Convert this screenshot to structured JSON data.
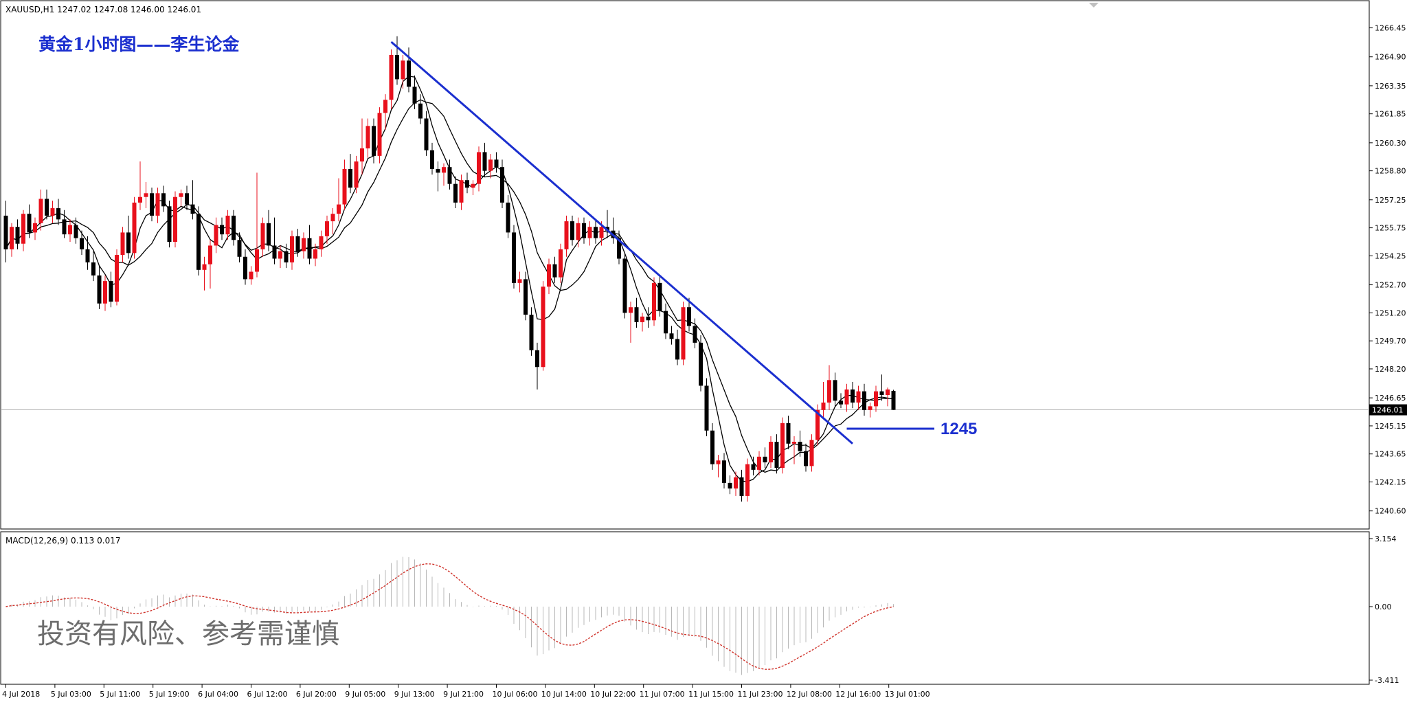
{
  "header": {
    "symbol_info": "XAUUSD,H1  1247.02 1247.08 1246.00 1246.01",
    "title": "黄金1小时图——李生论金",
    "disclaimer": "投资有风险、参考需谨慎"
  },
  "colors": {
    "bull": "#e8101c",
    "bear": "#000000",
    "trendline": "#1b2fcf",
    "ma": "#000000",
    "macd_hist": "#b8b8b8",
    "macd_signal": "#d0342c",
    "price_line": "#b0b0b0"
  },
  "chart_data": [
    {
      "type": "candlestick",
      "symbol": "XAUUSD",
      "timeframe": "H1",
      "ohlc_current": {
        "open": 1247.02,
        "high": 1247.08,
        "low": 1246.0,
        "close": 1246.01
      },
      "current_price_label": "1246.01",
      "ylim": [
        1240.0,
        1267.5
      ],
      "y_ticks": [
        "1266.45",
        "1264.90",
        "1263.35",
        "1261.85",
        "1260.30",
        "1258.80",
        "1257.25",
        "1255.75",
        "1254.25",
        "1252.70",
        "1251.20",
        "1249.70",
        "1248.20",
        "1246.65",
        "1245.15",
        "1243.65",
        "1242.15",
        "1240.60"
      ],
      "x_tick_labels": [
        "4 Jul 2018",
        "5 Jul 03:00",
        "5 Jul 11:00",
        "5 Jul 19:00",
        "6 Jul 04:00",
        "6 Jul 12:00",
        "6 Jul 20:00",
        "9 Jul 05:00",
        "9 Jul 13:00",
        "9 Jul 21:00",
        "10 Jul 06:00",
        "10 Jul 14:00",
        "10 Jul 22:00",
        "11 Jul 07:00",
        "11 Jul 15:00",
        "11 Jul 23:00",
        "12 Jul 08:00",
        "12 Jul 16:00",
        "13 Jul 01:00"
      ],
      "candles": [
        [
          1256.4,
          1257.2,
          1253.9,
          1254.6
        ],
        [
          1254.6,
          1256.0,
          1254.2,
          1255.8
        ],
        [
          1255.8,
          1256.2,
          1254.6,
          1254.9
        ],
        [
          1254.9,
          1256.7,
          1254.5,
          1256.5
        ],
        [
          1256.5,
          1257.0,
          1255.2,
          1255.5
        ],
        [
          1255.5,
          1256.3,
          1255.1,
          1256.0
        ],
        [
          1256.0,
          1257.8,
          1255.6,
          1257.3
        ],
        [
          1257.3,
          1257.8,
          1256.2,
          1256.4
        ],
        [
          1256.4,
          1257.2,
          1256.0,
          1256.8
        ],
        [
          1256.8,
          1257.3,
          1255.9,
          1256.2
        ],
        [
          1256.2,
          1256.7,
          1255.2,
          1255.4
        ],
        [
          1255.4,
          1256.2,
          1255.0,
          1255.9
        ],
        [
          1255.9,
          1256.3,
          1254.9,
          1255.2
        ],
        [
          1255.2,
          1255.6,
          1254.3,
          1254.6
        ],
        [
          1254.6,
          1255.3,
          1253.5,
          1253.9
        ],
        [
          1253.9,
          1254.5,
          1252.9,
          1253.2
        ],
        [
          1253.2,
          1253.7,
          1251.4,
          1251.7
        ],
        [
          1251.7,
          1253.2,
          1251.3,
          1252.9
        ],
        [
          1252.9,
          1253.4,
          1251.5,
          1251.8
        ],
        [
          1251.8,
          1254.6,
          1251.6,
          1254.3
        ],
        [
          1254.3,
          1255.8,
          1253.9,
          1255.5
        ],
        [
          1255.5,
          1256.4,
          1254.1,
          1254.4
        ],
        [
          1254.4,
          1257.4,
          1254.1,
          1257.1
        ],
        [
          1257.1,
          1259.3,
          1256.7,
          1257.4
        ],
        [
          1257.4,
          1258.2,
          1256.8,
          1257.6
        ],
        [
          1257.6,
          1257.9,
          1256.1,
          1256.4
        ],
        [
          1256.4,
          1257.9,
          1256.0,
          1257.6
        ],
        [
          1257.6,
          1258.0,
          1256.6,
          1256.9
        ],
        [
          1256.9,
          1257.2,
          1254.7,
          1255.0
        ],
        [
          1255.0,
          1257.7,
          1254.7,
          1257.4
        ],
        [
          1257.4,
          1257.8,
          1256.9,
          1257.6
        ],
        [
          1257.6,
          1258.0,
          1256.7,
          1257.0
        ],
        [
          1257.0,
          1258.3,
          1256.2,
          1256.5
        ],
        [
          1256.5,
          1256.9,
          1253.2,
          1253.5
        ],
        [
          1253.5,
          1254.2,
          1252.4,
          1253.8
        ],
        [
          1253.8,
          1255.1,
          1252.5,
          1254.8
        ],
        [
          1254.8,
          1256.3,
          1254.4,
          1255.9
        ],
        [
          1255.9,
          1256.3,
          1255.1,
          1255.4
        ],
        [
          1255.4,
          1256.7,
          1255.1,
          1256.4
        ],
        [
          1256.4,
          1256.7,
          1254.8,
          1255.1
        ],
        [
          1255.1,
          1255.5,
          1253.9,
          1254.2
        ],
        [
          1254.2,
          1254.6,
          1252.7,
          1253.0
        ],
        [
          1253.0,
          1253.7,
          1252.7,
          1253.4
        ],
        [
          1253.4,
          1258.7,
          1253.1,
          1254.6
        ],
        [
          1254.6,
          1256.3,
          1254.2,
          1256.0
        ],
        [
          1256.0,
          1256.7,
          1254.5,
          1254.8
        ],
        [
          1254.8,
          1256.3,
          1253.8,
          1254.1
        ],
        [
          1254.1,
          1254.8,
          1253.6,
          1254.5
        ],
        [
          1254.5,
          1254.9,
          1253.6,
          1253.9
        ],
        [
          1253.9,
          1255.6,
          1253.5,
          1255.3
        ],
        [
          1255.3,
          1255.7,
          1254.2,
          1254.5
        ],
        [
          1254.5,
          1255.5,
          1254.1,
          1255.2
        ],
        [
          1255.2,
          1255.9,
          1253.8,
          1254.1
        ],
        [
          1254.1,
          1254.9,
          1253.7,
          1254.6
        ],
        [
          1254.6,
          1255.6,
          1254.2,
          1255.3
        ],
        [
          1255.3,
          1256.4,
          1254.9,
          1256.1
        ],
        [
          1256.1,
          1256.8,
          1255.4,
          1256.5
        ],
        [
          1256.5,
          1258.4,
          1256.1,
          1257.0
        ],
        [
          1257.0,
          1259.4,
          1256.7,
          1258.9
        ],
        [
          1258.9,
          1259.7,
          1257.6,
          1257.9
        ],
        [
          1257.9,
          1259.6,
          1257.6,
          1259.3
        ],
        [
          1259.3,
          1261.6,
          1258.6,
          1260.0
        ],
        [
          1260.0,
          1261.6,
          1259.5,
          1261.2
        ],
        [
          1261.2,
          1261.6,
          1259.2,
          1259.6
        ],
        [
          1259.6,
          1262.2,
          1259.2,
          1261.9
        ],
        [
          1261.9,
          1262.9,
          1261.0,
          1262.6
        ],
        [
          1262.6,
          1265.3,
          1262.1,
          1265.0
        ],
        [
          1265.0,
          1266.0,
          1263.4,
          1263.7
        ],
        [
          1263.7,
          1265.0,
          1263.2,
          1264.7
        ],
        [
          1264.7,
          1265.4,
          1263.0,
          1263.3
        ],
        [
          1263.3,
          1263.9,
          1262.1,
          1262.4
        ],
        [
          1262.4,
          1262.9,
          1261.3,
          1261.6
        ],
        [
          1261.6,
          1262.0,
          1259.6,
          1259.9
        ],
        [
          1259.9,
          1260.3,
          1258.6,
          1258.9
        ],
        [
          1258.9,
          1259.3,
          1257.7,
          1258.7
        ],
        [
          1258.7,
          1259.2,
          1258.0,
          1259.0
        ],
        [
          1259.0,
          1259.4,
          1257.8,
          1258.1
        ],
        [
          1258.1,
          1258.5,
          1256.8,
          1257.1
        ],
        [
          1257.1,
          1258.6,
          1256.7,
          1258.3
        ],
        [
          1258.3,
          1258.7,
          1257.6,
          1257.9
        ],
        [
          1257.9,
          1258.3,
          1257.5,
          1258.1
        ],
        [
          1258.1,
          1260.1,
          1257.7,
          1259.8
        ],
        [
          1259.8,
          1260.3,
          1258.5,
          1258.8
        ],
        [
          1258.8,
          1259.7,
          1258.4,
          1259.4
        ],
        [
          1259.4,
          1259.8,
          1258.7,
          1259.0
        ],
        [
          1259.0,
          1259.4,
          1256.8,
          1257.1
        ],
        [
          1257.1,
          1257.5,
          1255.2,
          1255.5
        ],
        [
          1255.5,
          1255.9,
          1252.5,
          1252.8
        ],
        [
          1252.8,
          1253.4,
          1252.3,
          1253.0
        ],
        [
          1253.0,
          1253.4,
          1250.8,
          1251.1
        ],
        [
          1251.1,
          1251.5,
          1248.9,
          1249.2
        ],
        [
          1249.2,
          1249.6,
          1247.1,
          1248.3
        ],
        [
          1248.3,
          1252.9,
          1248.1,
          1252.6
        ],
        [
          1252.6,
          1254.1,
          1252.2,
          1253.8
        ],
        [
          1253.8,
          1254.2,
          1252.8,
          1253.1
        ],
        [
          1253.1,
          1254.9,
          1252.8,
          1254.6
        ],
        [
          1254.6,
          1256.4,
          1254.2,
          1256.1
        ],
        [
          1256.1,
          1256.4,
          1254.8,
          1255.1
        ],
        [
          1255.1,
          1256.3,
          1254.7,
          1256.0
        ],
        [
          1256.0,
          1256.3,
          1254.9,
          1255.2
        ],
        [
          1255.2,
          1256.1,
          1254.8,
          1255.8
        ],
        [
          1255.8,
          1256.2,
          1254.9,
          1255.2
        ],
        [
          1255.2,
          1256.1,
          1254.8,
          1255.8
        ],
        [
          1255.8,
          1256.7,
          1255.2,
          1255.6
        ],
        [
          1255.6,
          1256.3,
          1254.9,
          1255.2
        ],
        [
          1255.2,
          1255.6,
          1253.8,
          1254.1
        ],
        [
          1254.1,
          1254.4,
          1250.9,
          1251.2
        ],
        [
          1251.2,
          1251.8,
          1249.6,
          1251.5
        ],
        [
          1251.5,
          1252.0,
          1250.4,
          1250.7
        ],
        [
          1250.7,
          1251.2,
          1250.2,
          1251.0
        ],
        [
          1251.0,
          1251.5,
          1250.4,
          1250.8
        ],
        [
          1250.8,
          1253.1,
          1250.5,
          1252.8
        ],
        [
          1252.8,
          1253.2,
          1251.0,
          1251.3
        ],
        [
          1251.3,
          1251.7,
          1249.8,
          1250.1
        ],
        [
          1250.1,
          1250.5,
          1249.5,
          1249.8
        ],
        [
          1249.8,
          1250.3,
          1248.4,
          1248.7
        ],
        [
          1248.7,
          1251.8,
          1248.4,
          1251.5
        ],
        [
          1251.5,
          1252.0,
          1250.2,
          1250.5
        ],
        [
          1250.5,
          1250.9,
          1249.3,
          1249.6
        ],
        [
          1249.6,
          1250.0,
          1247.0,
          1247.3
        ],
        [
          1247.3,
          1247.7,
          1244.6,
          1244.9
        ],
        [
          1244.9,
          1245.3,
          1242.8,
          1243.1
        ],
        [
          1243.1,
          1243.6,
          1242.4,
          1243.3
        ],
        [
          1243.3,
          1243.7,
          1241.8,
          1242.1
        ],
        [
          1242.1,
          1242.5,
          1241.5,
          1241.8
        ],
        [
          1241.8,
          1242.7,
          1241.4,
          1242.4
        ],
        [
          1242.4,
          1242.8,
          1241.1,
          1241.4
        ],
        [
          1241.4,
          1243.4,
          1241.1,
          1243.1
        ],
        [
          1243.1,
          1243.5,
          1242.5,
          1242.8
        ],
        [
          1242.8,
          1243.8,
          1242.5,
          1243.5
        ],
        [
          1243.5,
          1244.0,
          1242.9,
          1243.2
        ],
        [
          1243.2,
          1244.6,
          1242.9,
          1244.3
        ],
        [
          1244.3,
          1244.7,
          1242.6,
          1242.9
        ],
        [
          1242.9,
          1245.6,
          1242.6,
          1245.3
        ],
        [
          1245.3,
          1245.7,
          1243.9,
          1244.2
        ],
        [
          1244.2,
          1244.6,
          1243.1,
          1244.3
        ],
        [
          1244.3,
          1244.9,
          1243.5,
          1243.8
        ],
        [
          1243.8,
          1244.2,
          1242.7,
          1243.0
        ],
        [
          1243.0,
          1244.7,
          1242.7,
          1244.4
        ],
        [
          1244.4,
          1246.3,
          1244.1,
          1246.0
        ],
        [
          1246.0,
          1247.5,
          1245.5,
          1246.4
        ],
        [
          1246.4,
          1248.4,
          1246.0,
          1247.6
        ],
        [
          1247.6,
          1248.0,
          1246.2,
          1246.5
        ],
        [
          1246.5,
          1246.9,
          1246.1,
          1246.3
        ],
        [
          1246.3,
          1247.4,
          1245.9,
          1247.1
        ],
        [
          1247.1,
          1247.5,
          1246.1,
          1246.4
        ],
        [
          1246.4,
          1247.3,
          1246.0,
          1247.0
        ],
        [
          1247.0,
          1247.4,
          1245.7,
          1246.0
        ],
        [
          1246.0,
          1246.4,
          1245.6,
          1246.2
        ],
        [
          1246.2,
          1247.3,
          1245.9,
          1247.0
        ],
        [
          1247.0,
          1247.9,
          1246.5,
          1246.8
        ],
        [
          1246.8,
          1247.2,
          1246.2,
          1247.1
        ],
        [
          1247.02,
          1247.08,
          1246.0,
          1246.01
        ]
      ],
      "trendline": {
        "start": {
          "index": 66,
          "price": 1265.7
        },
        "end": {
          "index": 145,
          "price": 1244.2
        }
      },
      "support_level": {
        "price": 1245,
        "label": "1245",
        "from_index": 144,
        "to_index": 159
      },
      "moving_averages": [
        {
          "period": 5
        },
        {
          "period": 10
        }
      ]
    },
    {
      "type": "macd",
      "label": "MACD(12,26,9) 0.113 0.017",
      "params": [
        12,
        26,
        9
      ],
      "macd": 0.113,
      "signal": 0.017,
      "ylim": [
        -3.411,
        3.154
      ],
      "y_ticks": [
        "3.154",
        "0.00",
        "-3.411"
      ]
    }
  ]
}
